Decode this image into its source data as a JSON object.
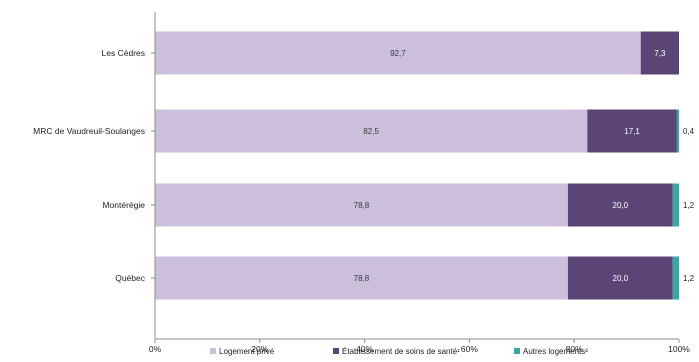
{
  "chart_data": {
    "type": "bar",
    "orientation": "horizontal",
    "stacked": true,
    "categories": [
      "Les Cèdres",
      "MRC de Vaudreuil-Soulanges",
      "Montérégie",
      "Québec"
    ],
    "series": [
      {
        "name": "Logement privé",
        "color": "#cbbfdb",
        "values": [
          92.7,
          82.5,
          78.8,
          78.8
        ],
        "labels": [
          "92,7",
          "82,5",
          "78,8",
          "78,8"
        ]
      },
      {
        "name": "Établissement de soins de santé¹",
        "color": "#5b4476",
        "values": [
          7.3,
          17.1,
          20.0,
          20.0
        ],
        "labels": [
          "7,3",
          "17,1",
          "20,0",
          "20,0"
        ]
      },
      {
        "name": "Autres logements²",
        "color": "#3aa6a6",
        "values": [
          0.0,
          0.4,
          1.2,
          1.2
        ],
        "labels": [
          "",
          "0,4",
          "1,2",
          "1,2"
        ]
      }
    ],
    "xlim": [
      0,
      100
    ],
    "xticks": [
      "0%",
      "20%",
      "40%",
      "60%",
      "80%",
      "100%"
    ],
    "grid": false,
    "legend_position": "bottom"
  }
}
